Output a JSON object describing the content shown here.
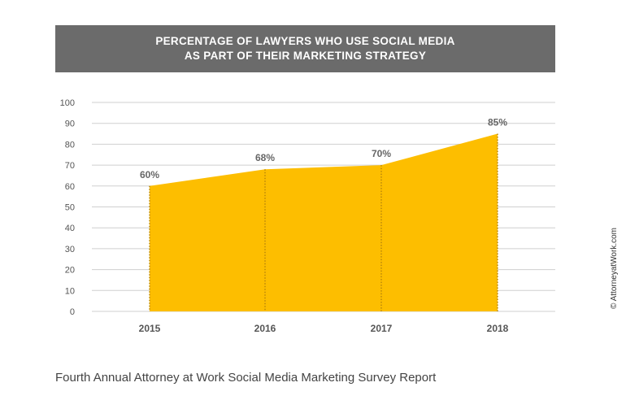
{
  "header": {
    "title_line1": "PERCENTAGE OF LAWYERS WHO USE SOCIAL MEDIA",
    "title_line2": "AS PART OF THEIR MARKETING STRATEGY"
  },
  "chart_data": {
    "type": "area",
    "categories": [
      "2015",
      "2016",
      "2017",
      "2018"
    ],
    "values": [
      60,
      68,
      70,
      85
    ],
    "data_labels": [
      "60%",
      "68%",
      "70%",
      "85%"
    ],
    "y_ticks": [
      "0",
      "10",
      "20",
      "30",
      "40",
      "50",
      "60",
      "70",
      "80",
      "90",
      "100"
    ],
    "ylim": [
      0,
      100
    ],
    "grid": true,
    "fill_color": "#FDBE00",
    "marker_line_color": "#B8860B"
  },
  "footer": {
    "source": "Fourth Annual Attorney at Work Social Media Marketing Survey Report"
  },
  "credit": "© AttorneyatWork.com"
}
